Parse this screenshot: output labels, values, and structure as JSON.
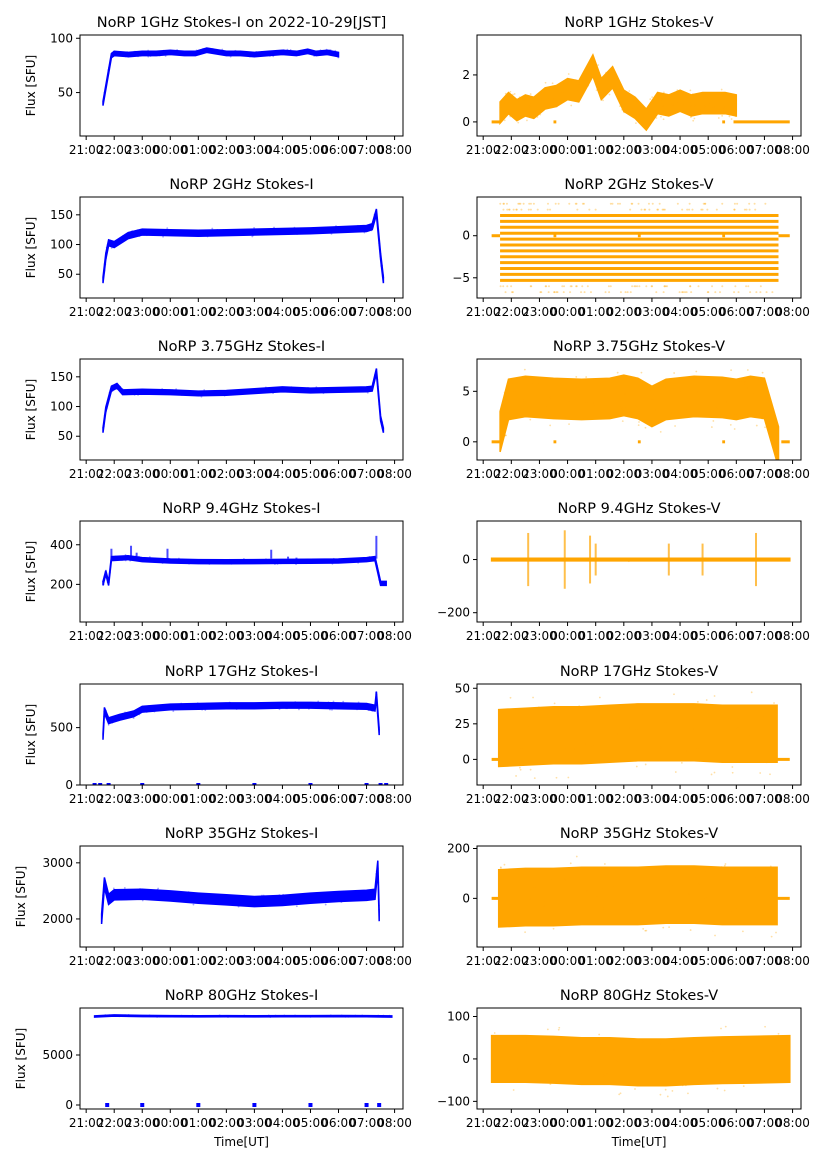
{
  "figure": {
    "xlabel": "Time[UT]",
    "xticks": [
      "21:00",
      "22:00",
      "23:00",
      "00:00",
      "01:00",
      "02:00",
      "03:00",
      "04:00",
      "05:00",
      "06:00",
      "07:00",
      "08:00"
    ],
    "colors": {
      "stokes_i": "#0000ff",
      "stokes_v": "#ffa500"
    }
  },
  "chart_data": [
    {
      "type": "scatter",
      "title": "NoRP 1GHz Stokes-I on 2022-10-29[JST]",
      "ylabel": "Flux [SFU]",
      "xlabel": "",
      "ylim": [
        10,
        103
      ],
      "yticks": [
        50,
        100
      ],
      "color": "#0000ff",
      "x_hours": [
        21.6,
        21.9,
        22.0,
        22.5,
        23.0,
        23.5,
        24.0,
        24.5,
        24.9,
        25.3,
        26.0,
        26.5,
        27.0,
        27.5,
        28.0,
        28.5,
        28.9,
        29.2,
        29.6,
        30.0
      ],
      "values": [
        40,
        84,
        86,
        85,
        86,
        86,
        87,
        86,
        86,
        89,
        86,
        86,
        85,
        86,
        87,
        86,
        88,
        86,
        87,
        85
      ],
      "spread": 2
    },
    {
      "type": "scatter",
      "title": "NoRP 1GHz Stokes-V",
      "ylabel": "",
      "xlabel": "",
      "ylim": [
        -0.6,
        3.7
      ],
      "yticks": [
        0,
        2
      ],
      "color": "#ffa500",
      "x_hours": [
        21.6,
        21.9,
        22.2,
        22.5,
        22.8,
        23.2,
        23.6,
        24.0,
        24.4,
        24.9,
        25.2,
        25.6,
        26.0,
        26.4,
        26.8,
        27.2,
        27.6,
        28.0,
        28.4,
        28.8,
        29.2,
        29.6,
        30.0
      ],
      "values": [
        0.4,
        0.8,
        0.5,
        0.7,
        0.6,
        1.0,
        1.1,
        1.4,
        1.3,
        2.4,
        1.4,
        1.9,
        0.9,
        0.6,
        0.1,
        0.8,
        0.7,
        0.9,
        0.7,
        0.8,
        0.8,
        0.8,
        0.7
      ],
      "spread": 0.45,
      "zero_segments": [
        [
          21.3,
          21.6
        ],
        [
          23.5,
          23.6
        ],
        [
          29.5,
          29.6
        ],
        [
          29.9,
          31.9
        ]
      ]
    },
    {
      "type": "scatter",
      "title": "NoRP 2GHz Stokes-I",
      "ylabel": "Flux [SFU]",
      "xlabel": "",
      "ylim": [
        10,
        180
      ],
      "yticks": [
        50,
        100,
        150
      ],
      "color": "#0000ff",
      "x_hours": [
        21.6,
        21.7,
        21.8,
        22.0,
        22.5,
        23.0,
        24.0,
        25.0,
        26.0,
        27.0,
        28.0,
        29.0,
        30.0,
        31.0,
        31.2,
        31.35,
        31.5,
        31.6
      ],
      "values": [
        40,
        80,
        103,
        100,
        115,
        121,
        120,
        119,
        120,
        121,
        122,
        123,
        125,
        127,
        130,
        155,
        80,
        40
      ],
      "spread": 5
    },
    {
      "type": "scatter",
      "title": "NoRP 2GHz Stokes-V",
      "ylabel": "",
      "xlabel": "",
      "ylim": [
        -7.4,
        4.6
      ],
      "yticks": [
        -5,
        0
      ],
      "color": "#ffa500",
      "bands": [
        -5.3,
        -4.6,
        -3.9,
        -3.2,
        -2.5,
        -1.8,
        -1.1,
        -0.4,
        0.3,
        1.0,
        1.7,
        2.4
      ],
      "band_x": [
        21.6,
        31.5
      ],
      "zero_segments": [
        [
          21.3,
          21.6
        ],
        [
          23.5,
          23.6
        ],
        [
          26.5,
          26.6
        ],
        [
          29.5,
          29.6
        ],
        [
          31.5,
          31.9
        ]
      ]
    },
    {
      "type": "scatter",
      "title": "NoRP 3.75GHz Stokes-I",
      "ylabel": "Flux [SFU]",
      "xlabel": "",
      "ylim": [
        10,
        180
      ],
      "yticks": [
        50,
        100,
        150
      ],
      "color": "#0000ff",
      "x_hours": [
        21.6,
        21.7,
        21.9,
        22.1,
        22.3,
        23.0,
        24.0,
        25.0,
        26.0,
        27.0,
        28.0,
        29.0,
        30.0,
        31.0,
        31.2,
        31.35,
        31.5,
        31.6
      ],
      "values": [
        60,
        95,
        130,
        135,
        124,
        125,
        124,
        122,
        123,
        126,
        129,
        127,
        128,
        129,
        130,
        160,
        80,
        60
      ],
      "spread": 4
    },
    {
      "type": "scatter",
      "title": "NoRP 3.75GHz Stokes-V",
      "ylabel": "",
      "xlabel": "",
      "ylim": [
        -1.8,
        8.2
      ],
      "yticks": [
        0,
        5
      ],
      "color": "#ffa500",
      "x_hours": [
        21.6,
        21.9,
        22.5,
        23.5,
        24.5,
        25.5,
        26.0,
        26.5,
        27.0,
        27.5,
        28.5,
        29.5,
        30.0,
        30.5,
        31.0,
        31.5
      ],
      "values": [
        1.0,
        4.2,
        4.5,
        4.3,
        4.2,
        4.3,
        4.6,
        4.3,
        3.5,
        4.2,
        4.5,
        4.4,
        4.2,
        4.5,
        4.3,
        -0.5
      ],
      "spread": 2.0,
      "zero_segments": [
        [
          21.3,
          21.6
        ],
        [
          23.5,
          23.6
        ],
        [
          26.5,
          26.6
        ],
        [
          29.5,
          29.6
        ],
        [
          31.6,
          31.9
        ]
      ]
    },
    {
      "type": "scatter",
      "title": "NoRP 9.4GHz Stokes-I",
      "ylabel": "Flux [SFU]",
      "xlabel": "",
      "ylim": [
        10,
        520
      ],
      "yticks": [
        200,
        400
      ],
      "color": "#0000ff",
      "x_hours": [
        21.6,
        21.7,
        21.8,
        21.9,
        22.5,
        23.0,
        24.0,
        25.0,
        26.0,
        27.0,
        28.0,
        29.0,
        30.0,
        31.0,
        31.3,
        31.5,
        31.7
      ],
      "values": [
        205,
        260,
        205,
        330,
        335,
        325,
        318,
        315,
        314,
        315,
        316,
        317,
        318,
        325,
        330,
        205,
        205
      ],
      "spread": 10,
      "spikes": [
        [
          21.9,
          380
        ],
        [
          22.6,
          395
        ],
        [
          22.8,
          360
        ],
        [
          23.9,
          380
        ],
        [
          27.6,
          375
        ],
        [
          28.2,
          340
        ],
        [
          28.5,
          335
        ],
        [
          29.9,
          330
        ],
        [
          31.35,
          445
        ]
      ]
    },
    {
      "type": "scatter",
      "title": "NoRP 9.4GHz Stokes-V",
      "ylabel": "",
      "xlabel": "",
      "ylim": [
        -235,
        145
      ],
      "yticks": [
        -200,
        0
      ],
      "color": "#ffa500",
      "x_hours": [
        21.3,
        31.9
      ],
      "values": [
        0,
        0
      ],
      "spread": 5,
      "spikes": [
        [
          22.6,
          100
        ],
        [
          23.9,
          110
        ],
        [
          24.8,
          90
        ],
        [
          25.0,
          60
        ],
        [
          27.6,
          60
        ],
        [
          28.8,
          60
        ],
        [
          30.7,
          100
        ]
      ]
    },
    {
      "type": "scatter",
      "title": "NoRP 17GHz Stokes-I",
      "ylabel": "Flux [SFU]",
      "xlabel": "",
      "ylim": [
        0,
        880
      ],
      "yticks": [
        0,
        500
      ],
      "color": "#0000ff",
      "x_hours": [
        21.6,
        21.65,
        21.8,
        22.2,
        22.7,
        23.0,
        24.0,
        25.0,
        26.0,
        27.0,
        28.0,
        29.0,
        30.0,
        31.0,
        31.3,
        31.35,
        31.45
      ],
      "values": [
        420,
        650,
        560,
        590,
        620,
        660,
        680,
        685,
        690,
        690,
        695,
        695,
        690,
        685,
        670,
        790,
        460
      ],
      "spread": 25,
      "zero_dots": [
        21.3,
        21.5,
        21.8,
        23.0,
        25.0,
        27.0,
        29.0,
        31.0,
        31.5,
        31.7
      ]
    },
    {
      "type": "scatter",
      "title": "NoRP 17GHz Stokes-V",
      "ylabel": "",
      "xlabel": "",
      "ylim": [
        -18,
        53
      ],
      "yticks": [
        0,
        25,
        50
      ],
      "color": "#ffa500",
      "x_hours": [
        21.55,
        22.5,
        23.5,
        24.5,
        25.5,
        26.5,
        27.5,
        28.5,
        29.5,
        30.5,
        31.45
      ],
      "values": [
        15,
        16,
        17,
        17,
        18,
        19,
        19,
        19,
        18,
        18,
        18
      ],
      "spread": 20,
      "zero_segments": [
        [
          21.3,
          21.55
        ],
        [
          31.45,
          31.9
        ]
      ]
    },
    {
      "type": "scatter",
      "title": "NoRP 35GHz Stokes-I",
      "ylabel": "Flux [SFU]",
      "xlabel": "",
      "ylim": [
        1500,
        3300
      ],
      "yticks": [
        2000,
        3000
      ],
      "color": "#0000ff",
      "x_hours": [
        21.55,
        21.65,
        21.8,
        22.0,
        23.0,
        24.0,
        25.0,
        26.0,
        27.0,
        28.0,
        29.0,
        30.0,
        31.0,
        31.3,
        31.4,
        31.45
      ],
      "values": [
        2000,
        2650,
        2350,
        2430,
        2440,
        2410,
        2370,
        2340,
        2310,
        2330,
        2370,
        2400,
        2420,
        2440,
        2950,
        2050
      ],
      "spread": 90
    },
    {
      "type": "scatter",
      "title": "NoRP 35GHz Stokes-V",
      "ylabel": "",
      "xlabel": "",
      "ylim": [
        -195,
        210
      ],
      "yticks": [
        0,
        200
      ],
      "color": "#ffa500",
      "x_hours": [
        21.55,
        22.5,
        23.5,
        24.5,
        25.5,
        26.5,
        27.5,
        28.5,
        29.5,
        30.5,
        31.45
      ],
      "values": [
        0,
        5,
        5,
        10,
        10,
        10,
        15,
        15,
        10,
        10,
        10
      ],
      "spread": 115,
      "zero_segments": [
        [
          21.3,
          21.55
        ],
        [
          31.45,
          31.9
        ]
      ]
    },
    {
      "type": "scatter",
      "title": "NoRP 80GHz Stokes-I",
      "ylabel": "Flux [SFU]",
      "xlabel": "Time[UT]",
      "ylim": [
        -400,
        9700
      ],
      "yticks": [
        0,
        5000
      ],
      "color": "#0000ff",
      "x_hours": [
        21.3,
        22.0,
        23.0,
        24.0,
        25.0,
        26.0,
        27.0,
        28.0,
        29.0,
        30.0,
        31.0,
        31.9
      ],
      "values": [
        8850,
        8950,
        8900,
        8880,
        8870,
        8880,
        8870,
        8880,
        8880,
        8890,
        8880,
        8850
      ],
      "spread": 60,
      "zero_dots": [
        21.75,
        23.0,
        25.0,
        27.0,
        29.0,
        31.0,
        31.45
      ]
    },
    {
      "type": "scatter",
      "title": "NoRP 80GHz Stokes-V",
      "ylabel": "",
      "xlabel": "Time[UT]",
      "ylim": [
        -118,
        120
      ],
      "yticks": [
        -100,
        0,
        100
      ],
      "color": "#ffa500",
      "x_hours": [
        21.3,
        22.5,
        23.5,
        24.5,
        25.5,
        26.5,
        27.5,
        28.5,
        29.5,
        30.5,
        31.9
      ],
      "values": [
        0,
        0,
        -2,
        -5,
        -5,
        -8,
        -8,
        -5,
        -3,
        -2,
        0
      ],
      "spread": 55
    }
  ]
}
